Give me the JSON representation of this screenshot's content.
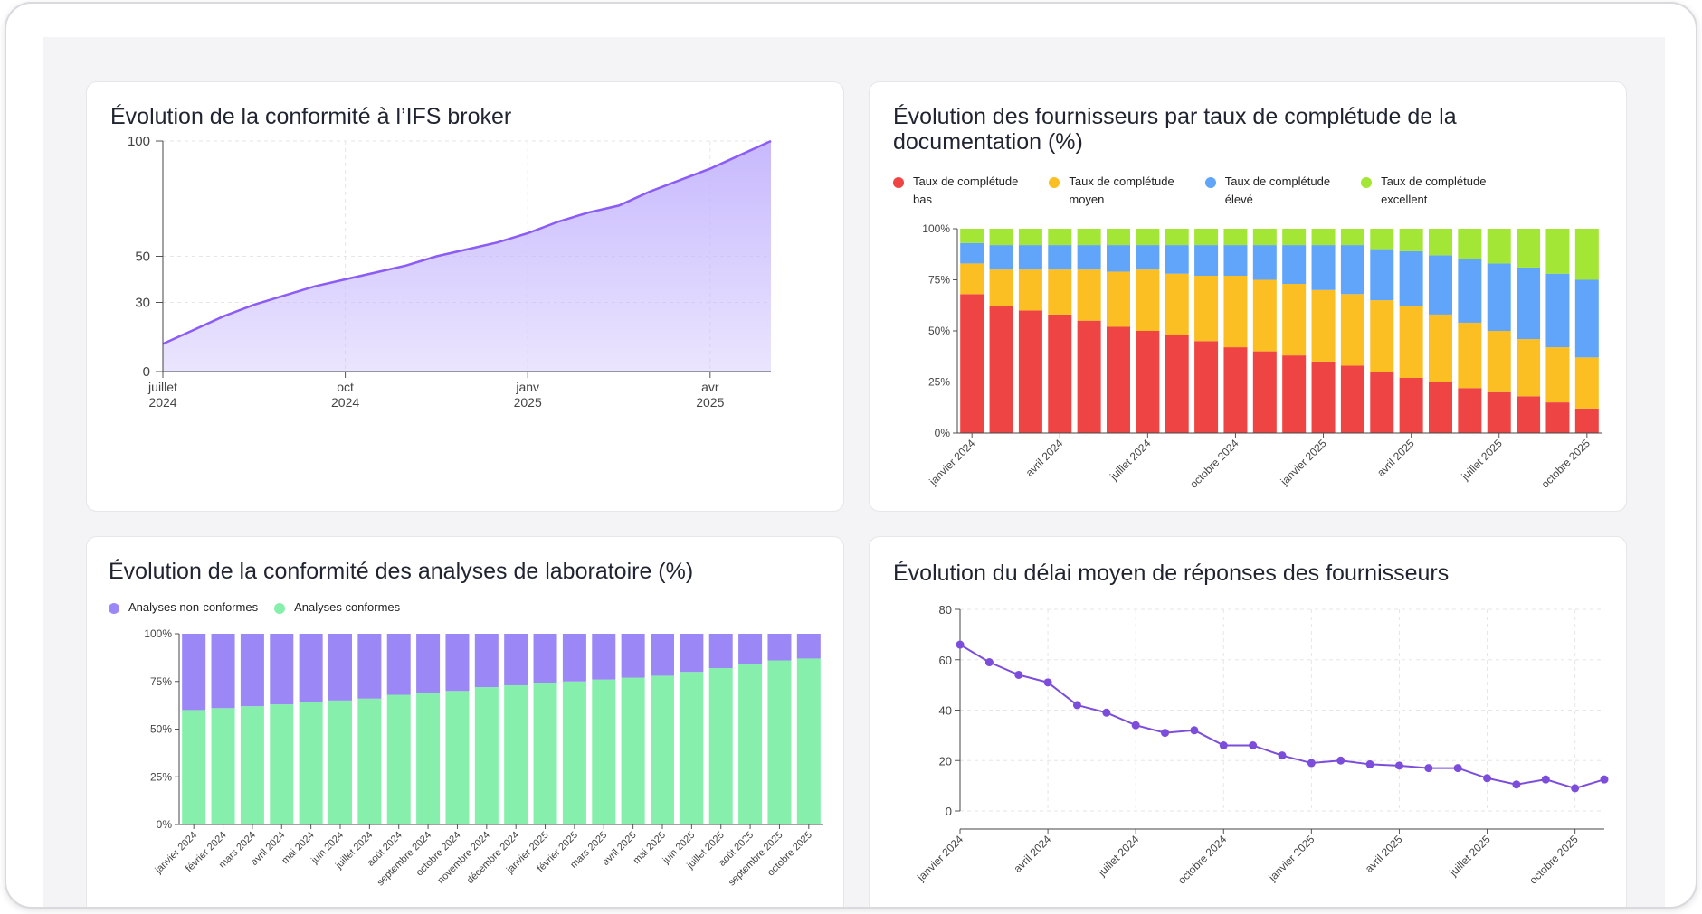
{
  "colors": {
    "purple_line": "#8b5cf6",
    "purple_fill": "#c4b5fd",
    "red": "#ef4444",
    "orange": "#fbbf24",
    "blue": "#60a5fa",
    "green": "#a3e635",
    "lab_nonconf": "#9b87f5",
    "lab_conf": "#86efac",
    "line_purple": "#7c4ddb"
  },
  "cards": {
    "ifs": {
      "title": "Évolution de la conformité à l’IFS broker"
    },
    "suppliers": {
      "title": "Évolution des fournisseurs par taux de complétude de la documentation (%)"
    },
    "lab": {
      "title": "Évolution de la conformité des analyses de laboratoire (%)"
    },
    "delay": {
      "title": "Évolution du délai moyen de réponses des fournisseurs"
    }
  },
  "chart_data": [
    {
      "id": "ifs",
      "type": "area",
      "title": "Évolution de la conformité à l’IFS broker",
      "x": [
        0,
        1,
        2,
        3,
        4,
        5,
        6,
        7,
        8,
        9,
        10,
        11,
        12,
        13,
        14,
        15,
        16,
        17,
        18,
        19,
        20
      ],
      "values": [
        12,
        18,
        24,
        29,
        33,
        37,
        40,
        43,
        46,
        50,
        53,
        56,
        60,
        65,
        69,
        72,
        78,
        83,
        88,
        94,
        100
      ],
      "yticks": [
        0,
        30,
        50,
        100
      ],
      "ylim": [
        0,
        100
      ],
      "xticks": [
        {
          "at": 0,
          "line1": "juillet",
          "line2": "2024"
        },
        {
          "at": 6,
          "line1": "oct",
          "line2": "2024"
        },
        {
          "at": 12,
          "line1": "janv",
          "line2": "2025"
        },
        {
          "at": 18,
          "line1": "avr",
          "line2": "2025"
        }
      ]
    },
    {
      "id": "suppliers",
      "type": "bar",
      "title": "Évolution des fournisseurs par taux de complétude de la documentation (%)",
      "categories": [
        "janvier 2024",
        "février 2024",
        "mars 2024",
        "avril 2024",
        "mai 2024",
        "juin 2024",
        "juillet 2024",
        "août 2024",
        "septembre 2024",
        "octobre 2024",
        "novembre 2024",
        "décembre 2024",
        "janvier 2025",
        "février 2025",
        "mars 2025",
        "avril 2025",
        "mai 2025",
        "juin 2025",
        "juillet 2025",
        "août 2025",
        "septembre 2025",
        "octobre 2025"
      ],
      "tick_labels": [
        {
          "index": 0,
          "label": "janvier 2024"
        },
        {
          "index": 3,
          "label": "avril 2024"
        },
        {
          "index": 6,
          "label": "juillet 2024"
        },
        {
          "index": 9,
          "label": "octobre 2024"
        },
        {
          "index": 12,
          "label": "janvier 2025"
        },
        {
          "index": 15,
          "label": "avril 2025"
        },
        {
          "index": 18,
          "label": "juillet 2025"
        },
        {
          "index": 21,
          "label": "octobre 2025"
        }
      ],
      "series": [
        {
          "name": "Taux de complétude bas",
          "line1": "Taux de complétude",
          "line2": "bas",
          "color": "#ef4444",
          "values": [
            68,
            62,
            60,
            58,
            55,
            52,
            50,
            48,
            45,
            42,
            40,
            38,
            35,
            33,
            30,
            27,
            25,
            22,
            20,
            18,
            15,
            12
          ]
        },
        {
          "name": "Taux de complétude moyen",
          "line1": "Taux de complétude",
          "line2": "moyen",
          "color": "#fbbf24",
          "values": [
            15,
            18,
            20,
            22,
            25,
            27,
            30,
            30,
            32,
            35,
            35,
            35,
            35,
            35,
            35,
            35,
            33,
            32,
            30,
            28,
            27,
            25
          ]
        },
        {
          "name": "Taux de complétude élevé",
          "line1": "Taux de complétude",
          "line2": "élevé",
          "color": "#60a5fa",
          "values": [
            10,
            12,
            12,
            12,
            12,
            13,
            12,
            14,
            15,
            15,
            17,
            19,
            22,
            24,
            25,
            27,
            29,
            31,
            33,
            35,
            36,
            38
          ]
        },
        {
          "name": "Taux de complétude excellent",
          "line1": "Taux de complétude",
          "line2": "excellent",
          "color": "#a3e635",
          "values": [
            7,
            8,
            8,
            8,
            8,
            8,
            8,
            8,
            8,
            8,
            8,
            8,
            8,
            8,
            10,
            11,
            13,
            15,
            17,
            19,
            22,
            25
          ]
        }
      ],
      "yticks": [
        "0%",
        "25%",
        "50%",
        "75%",
        "100%"
      ],
      "ylim": [
        0,
        100
      ],
      "stacked": true
    },
    {
      "id": "lab",
      "type": "bar",
      "title": "Évolution de la conformité des analyses de laboratoire (%)",
      "categories": [
        "janvier 2024",
        "février 2024",
        "mars 2024",
        "avril 2024",
        "mai 2024",
        "juin 2024",
        "juillet 2024",
        "août 2024",
        "septembre 2024",
        "octobre 2024",
        "novembre 2024",
        "décembre 2024",
        "janvier 2025",
        "février 2025",
        "mars 2025",
        "avril 2025",
        "mai 2025",
        "juin 2025",
        "juillet 2025",
        "août 2025",
        "septembre 2025",
        "octobre 2025"
      ],
      "series": [
        {
          "name": "Analyses non-conformes",
          "color": "#9b87f5",
          "values": [
            40,
            39,
            38,
            37,
            36,
            35,
            34,
            32,
            31,
            30,
            28,
            27,
            26,
            25,
            24,
            23,
            22,
            20,
            18,
            16,
            14,
            13
          ]
        },
        {
          "name": "Analyses conformes",
          "color": "#86efac",
          "values": [
            60,
            61,
            62,
            63,
            64,
            65,
            66,
            68,
            69,
            70,
            72,
            73,
            74,
            75,
            76,
            77,
            78,
            80,
            82,
            84,
            86,
            87
          ]
        }
      ],
      "yticks": [
        "0%",
        "25%",
        "50%",
        "75%",
        "100%"
      ],
      "ylim": [
        0,
        100
      ],
      "stacked": true
    },
    {
      "id": "delay",
      "type": "line",
      "title": "Évolution du délai moyen de réponses des fournisseurs",
      "x": [
        0,
        1,
        2,
        3,
        4,
        5,
        6,
        7,
        8,
        9,
        10,
        11,
        12,
        13,
        14,
        15,
        16,
        17,
        18,
        19,
        20,
        21,
        22
      ],
      "values": [
        66,
        59,
        54,
        51,
        42,
        39,
        34,
        31,
        32,
        26,
        26,
        22,
        19,
        20,
        18.5,
        18,
        17,
        17,
        13,
        10.5,
        12.5,
        9,
        12.5
      ],
      "yticks": [
        0,
        20,
        40,
        60,
        80
      ],
      "ylim": [
        0,
        80
      ],
      "tick_labels": [
        {
          "index": 0,
          "label": "janvier 2024"
        },
        {
          "index": 3,
          "label": "avril 2024"
        },
        {
          "index": 6,
          "label": "juillet 2024"
        },
        {
          "index": 9,
          "label": "octobre 2024"
        },
        {
          "index": 12,
          "label": "janvier 2025"
        },
        {
          "index": 15,
          "label": "avril 2025"
        },
        {
          "index": 18,
          "label": "juillet 2025"
        },
        {
          "index": 21,
          "label": "octobre 2025"
        }
      ]
    }
  ]
}
